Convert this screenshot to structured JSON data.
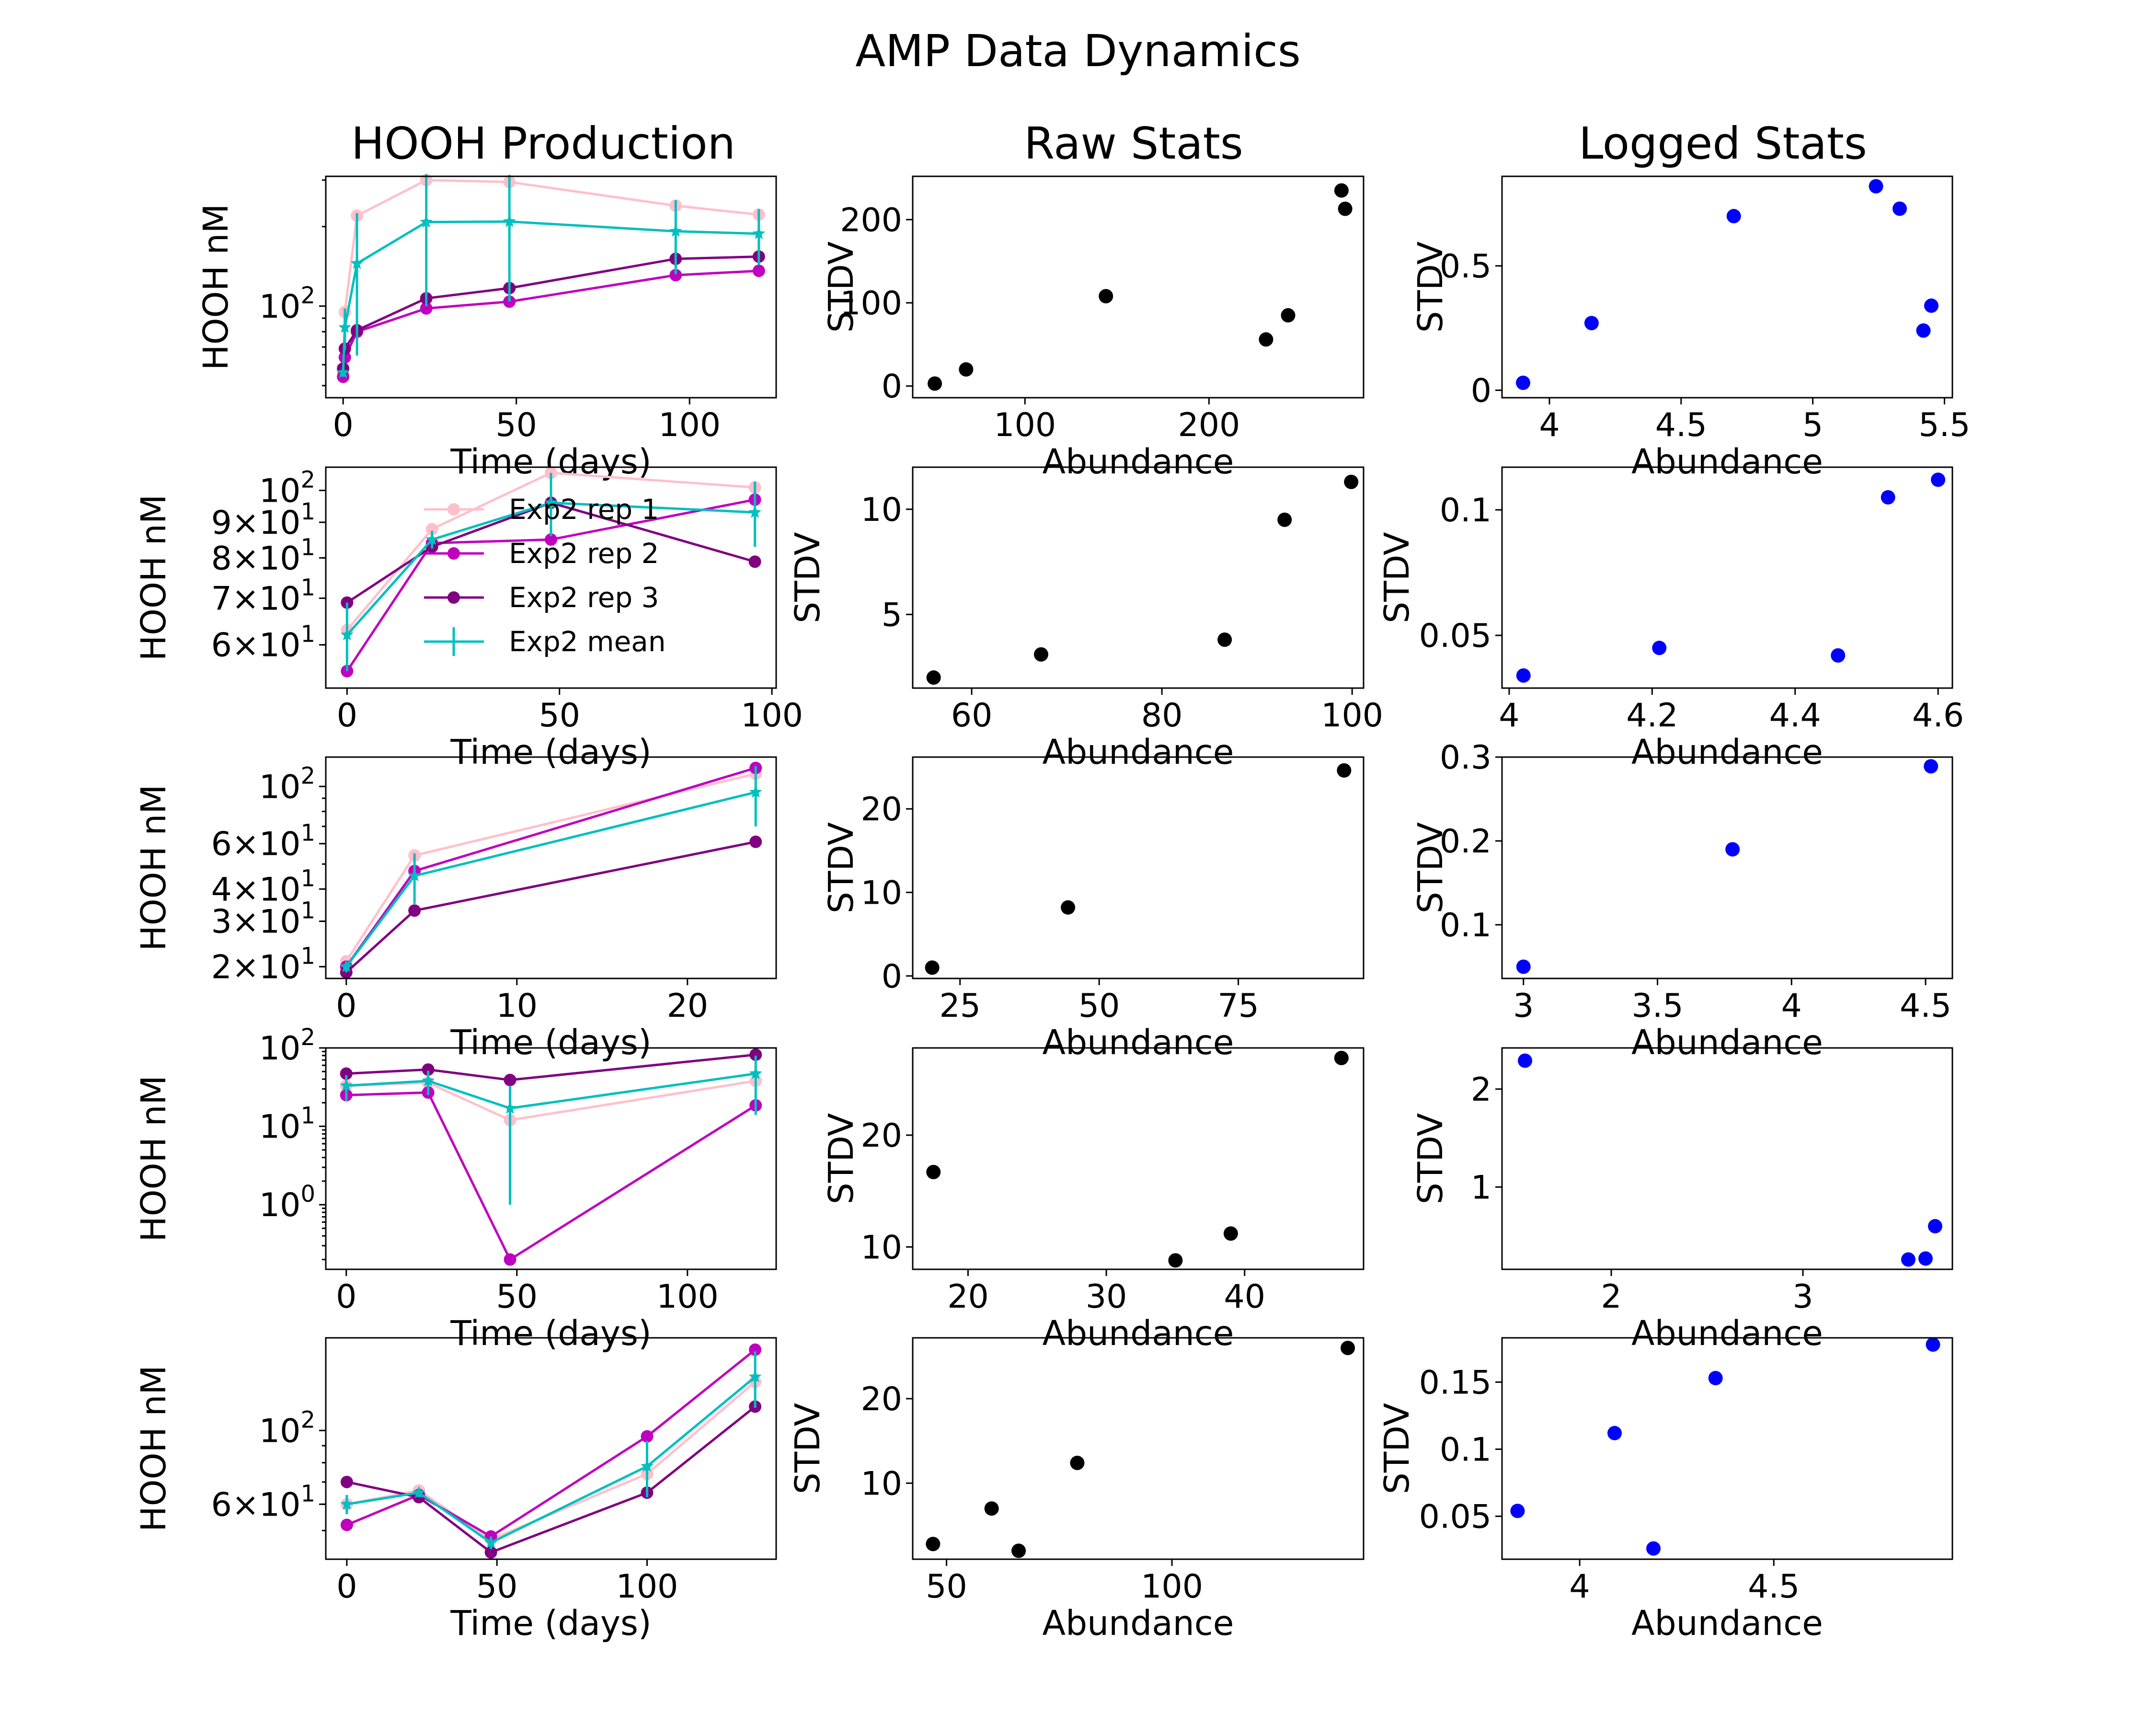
{
  "title": "AMP Data Dynamics",
  "column_titles": [
    "HOOH Production",
    "Raw Stats",
    "Logged Stats"
  ],
  "colors": {
    "rep1": "#ffc0cb",
    "rep2": "#bf00bf",
    "rep3": "#800080",
    "mean": "#00bfbf",
    "raw_points": "#000000",
    "logged_points": "#0000ff"
  },
  "legend": {
    "placement": "upper-center of row 2 time panel",
    "entries": [
      "Exp2 rep 1",
      "Exp2 rep 2",
      "Exp2 rep 3",
      "Exp2 mean"
    ]
  },
  "chart_data": [
    {
      "type": "line",
      "row": 1,
      "col": 1,
      "title": "HOOH Production",
      "xlabel": "Time (days)",
      "ylabel": "HOOH nM",
      "yscale": "log",
      "xlim": [
        -5,
        125
      ],
      "ylim": [
        45,
        310
      ],
      "xticks": [
        0,
        50,
        100
      ],
      "yticks": [
        100
      ],
      "yticklabels": [
        "10^2"
      ],
      "x": [
        0,
        0.5,
        4,
        24,
        48,
        96,
        120
      ],
      "series": [
        {
          "key": "rep1",
          "values": [
            56,
            95,
            220,
            300,
            295,
            240,
            222
          ]
        },
        {
          "key": "rep2",
          "values": [
            54,
            64,
            80,
            98,
            104,
            131,
            136
          ]
        },
        {
          "key": "rep3",
          "values": [
            58,
            69,
            81,
            107,
            117,
            151,
            154
          ]
        },
        {
          "key": "mean",
          "values": [
            56,
            83,
            145,
            208,
            209,
            192,
            188
          ],
          "yerr": [
            2,
            15,
            80,
            108,
            105,
            60,
            45
          ]
        }
      ]
    },
    {
      "type": "line",
      "row": 2,
      "col": 1,
      "xlabel": "Time (days)",
      "ylabel": "HOOH nM",
      "yscale": "log",
      "xlim": [
        -5,
        101
      ],
      "ylim": [
        52,
        108
      ],
      "xticks": [
        0,
        50,
        100
      ],
      "yticks": [
        60,
        70,
        80,
        90,
        100
      ],
      "yticklabels": [
        "6×10^1",
        "7×10^1",
        "8×10^1",
        "9×10^1",
        "10^2"
      ],
      "x": [
        0,
        20,
        48,
        96
      ],
      "series": [
        {
          "key": "rep1",
          "values": [
            63,
            88,
            106,
            101
          ]
        },
        {
          "key": "rep2",
          "values": [
            55,
            84,
            85,
            97
          ]
        },
        {
          "key": "rep3",
          "values": [
            69,
            83,
            96,
            79
          ]
        },
        {
          "key": "mean",
          "values": [
            62,
            85,
            96,
            93
          ],
          "yerr": [
            7,
            2.5,
            10,
            10
          ]
        }
      ]
    },
    {
      "type": "line",
      "row": 3,
      "col": 1,
      "xlabel": "Time (days)",
      "ylabel": "HOOH nM",
      "yscale": "log",
      "xlim": [
        -1.2,
        25.2
      ],
      "ylim": [
        18,
        130
      ],
      "xticks": [
        0,
        10,
        20
      ],
      "yticks": [
        20,
        30,
        40,
        60,
        100
      ],
      "yticklabels": [
        "2×10^1",
        "3×10^1",
        "4×10^1",
        "6×10^1",
        "10^2"
      ],
      "x": [
        0,
        4,
        24
      ],
      "series": [
        {
          "key": "rep1",
          "values": [
            21,
            54,
            112
          ]
        },
        {
          "key": "rep2",
          "values": [
            20,
            47,
            118
          ]
        },
        {
          "key": "rep3",
          "values": [
            19,
            33,
            61
          ]
        },
        {
          "key": "mean",
          "values": [
            20,
            45,
            95
          ],
          "yerr": [
            1,
            10,
            25
          ]
        }
      ]
    },
    {
      "type": "line",
      "row": 4,
      "col": 1,
      "xlabel": "Time (days)",
      "ylabel": "HOOH nM",
      "yscale": "log",
      "xlim": [
        -6,
        126
      ],
      "ylim": [
        0.15,
        100
      ],
      "xticks": [
        0,
        50,
        100
      ],
      "yticks": [
        1,
        10,
        100
      ],
      "yticklabels": [
        "10^0",
        "10^1",
        "10^2"
      ],
      "x": [
        0,
        24,
        48,
        120
      ],
      "series": [
        {
          "key": "rep1",
          "values": [
            33,
            36,
            12,
            38
          ]
        },
        {
          "key": "rep2",
          "values": [
            25,
            27,
            0.2,
            18.5
          ]
        },
        {
          "key": "rep3",
          "values": [
            47,
            53,
            39,
            82
          ]
        },
        {
          "key": "mean",
          "values": [
            33,
            38,
            17,
            47
          ],
          "yerr": [
            12,
            13,
            16,
            33
          ]
        }
      ]
    },
    {
      "type": "line",
      "row": 5,
      "col": 1,
      "xlabel": "Time (days)",
      "ylabel": "HOOH nM",
      "yscale": "log",
      "xlim": [
        -7,
        143
      ],
      "ylim": [
        41,
        190
      ],
      "xticks": [
        0,
        50,
        100
      ],
      "yticks": [
        60,
        100
      ],
      "yticklabels": [
        "6×10^1",
        "10^2"
      ],
      "x": [
        0,
        24,
        48,
        100,
        136
      ],
      "series": [
        {
          "key": "rep1",
          "values": [
            60,
            66,
            47,
            74,
            140
          ]
        },
        {
          "key": "rep2",
          "values": [
            52,
            64,
            48,
            96,
            175
          ]
        },
        {
          "key": "rep3",
          "values": [
            70,
            63,
            43,
            65,
            118
          ]
        },
        {
          "key": "mean",
          "values": [
            60,
            65,
            46,
            78,
            145
          ],
          "yerr": [
            4,
            2,
            2,
            15,
            28
          ]
        }
      ]
    },
    {
      "type": "scatter",
      "row": 1,
      "col": 2,
      "title": "Raw Stats",
      "xlabel": "Abundance",
      "ylabel": "STDV",
      "xlim": [
        39,
        284
      ],
      "ylim": [
        -14,
        252
      ],
      "xticks": [
        100,
        200
      ],
      "yticks": [
        0,
        100,
        200
      ],
      "x": [
        51,
        68,
        144,
        231,
        243,
        272,
        274
      ],
      "y": [
        3,
        20,
        108,
        56,
        85,
        235,
        213
      ]
    },
    {
      "type": "scatter",
      "row": 2,
      "col": 2,
      "xlabel": "Abundance",
      "ylabel": "STDV",
      "xlim": [
        53.8,
        101.2
      ],
      "ylim": [
        1.5,
        12
      ],
      "xticks": [
        60,
        80,
        100
      ],
      "yticks": [
        5,
        10
      ],
      "x": [
        56,
        67.3,
        86.6,
        92.9,
        99.9
      ],
      "y": [
        2,
        3.1,
        3.8,
        9.5,
        11.3
      ]
    },
    {
      "type": "scatter",
      "row": 3,
      "col": 2,
      "xlabel": "Abundance",
      "ylabel": "STDV",
      "xlim": [
        16.5,
        97.5
      ],
      "ylim": [
        -0.3,
        26.2
      ],
      "xticks": [
        25,
        50,
        75
      ],
      "yticks": [
        0,
        10,
        20
      ],
      "x": [
        20,
        44.4,
        94
      ],
      "y": [
        1,
        8.2,
        24.6
      ]
    },
    {
      "type": "scatter",
      "row": 4,
      "col": 2,
      "xlabel": "Abundance",
      "ylabel": "STDV",
      "xlim": [
        16,
        48.6
      ],
      "ylim": [
        8,
        27.8
      ],
      "xticks": [
        20,
        30,
        40
      ],
      "yticks": [
        10,
        20
      ],
      "x": [
        17.5,
        35,
        39,
        47
      ],
      "y": [
        16.7,
        8.8,
        11.2,
        26.9
      ]
    },
    {
      "type": "scatter",
      "row": 5,
      "col": 2,
      "xlabel": "Abundance",
      "ylabel": "STDV",
      "xlim": [
        42.5,
        142.5
      ],
      "ylim": [
        1,
        27.2
      ],
      "xticks": [
        50,
        100
      ],
      "yticks": [
        10,
        20
      ],
      "x": [
        47,
        60,
        66,
        79,
        139
      ],
      "y": [
        2.8,
        7,
        2,
        12.4,
        26
      ]
    },
    {
      "type": "scatter",
      "row": 1,
      "col": 3,
      "title": "Logged Stats",
      "xlabel": "Abundance",
      "ylabel": "STDV",
      "xlim": [
        3.82,
        5.53
      ],
      "ylim": [
        -0.03,
        0.86
      ],
      "xticks": [
        4.0,
        4.5,
        5.0,
        5.5
      ],
      "yticks": [
        0.0,
        0.5
      ],
      "x": [
        3.9,
        4.16,
        4.7,
        5.24,
        5.33,
        5.42,
        5.45
      ],
      "y": [
        0.03,
        0.27,
        0.7,
        0.82,
        0.73,
        0.24,
        0.34
      ]
    },
    {
      "type": "scatter",
      "row": 2,
      "col": 3,
      "xlabel": "Abundance",
      "ylabel": "STDV",
      "xlim": [
        3.99,
        4.62
      ],
      "ylim": [
        0.029,
        0.117
      ],
      "xticks": [
        4.0,
        4.2,
        4.4,
        4.6
      ],
      "yticks": [
        0.05,
        0.1
      ],
      "x": [
        4.02,
        4.21,
        4.46,
        4.53,
        4.6
      ],
      "y": [
        0.034,
        0.045,
        0.042,
        0.105,
        0.112
      ]
    },
    {
      "type": "scatter",
      "row": 3,
      "col": 3,
      "xlabel": "Abundance",
      "ylabel": "STDV",
      "xlim": [
        2.92,
        4.6
      ],
      "ylim": [
        0.036,
        0.3
      ],
      "xticks": [
        3.0,
        3.5,
        4.0,
        4.5
      ],
      "yticks": [
        0.1,
        0.2,
        0.3
      ],
      "x": [
        3.0,
        3.78,
        4.52
      ],
      "y": [
        0.05,
        0.19,
        0.289
      ]
    },
    {
      "type": "scatter",
      "row": 4,
      "col": 3,
      "xlabel": "Abundance",
      "ylabel": "STDV",
      "xlim": [
        1.43,
        3.78
      ],
      "ylim": [
        0.16,
        2.42
      ],
      "xticks": [
        2,
        3
      ],
      "yticks": [
        1,
        2
      ],
      "x": [
        1.55,
        3.55,
        3.64,
        3.69
      ],
      "y": [
        2.29,
        0.26,
        0.27,
        0.6
      ]
    },
    {
      "type": "scatter",
      "row": 5,
      "col": 3,
      "xlabel": "Abundance",
      "ylabel": "STDV",
      "xlim": [
        3.8,
        4.96
      ],
      "ylim": [
        0.018,
        0.183
      ],
      "xticks": [
        4.0,
        4.5
      ],
      "yticks": [
        0.05,
        0.1,
        0.15
      ],
      "x": [
        3.84,
        4.09,
        4.19,
        4.35,
        4.91
      ],
      "y": [
        0.054,
        0.112,
        0.026,
        0.153,
        0.178
      ]
    }
  ]
}
